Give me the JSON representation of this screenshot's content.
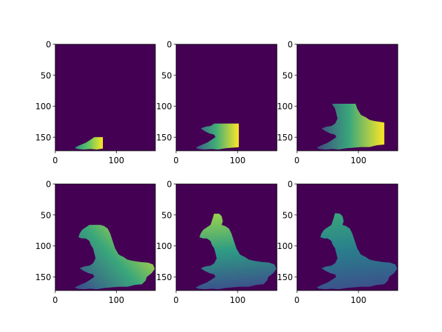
{
  "figure": {
    "background": "#ffffff",
    "colormap": "viridis",
    "colormap_stops": [
      "#440154",
      "#3b528b",
      "#21918c",
      "#5ec962",
      "#fde725"
    ]
  },
  "chart_data": [
    {
      "type": "heatmap",
      "panel": "row1-col1",
      "image_shape": [
        172,
        164
      ],
      "xlim": [
        0,
        164
      ],
      "ylim": [
        172,
        0
      ],
      "xticks": [
        0,
        100
      ],
      "xtick_labels": [
        "0",
        "100"
      ],
      "yticks": [
        0,
        50,
        100,
        150
      ],
      "ytick_labels": [
        "0",
        "50",
        "100",
        "150"
      ],
      "background_value": 0.0,
      "masked_region": "small patch near x 30-75, y 153-172 (south-west)",
      "value_range": [
        0.45,
        1.0
      ]
    },
    {
      "type": "heatmap",
      "panel": "row1-col2",
      "image_shape": [
        172,
        164
      ],
      "xlim": [
        0,
        164
      ],
      "ylim": [
        172,
        0
      ],
      "xticks": [
        0,
        100
      ],
      "xtick_labels": [
        "0",
        "100"
      ],
      "yticks": [
        0,
        50,
        100,
        150
      ],
      "ytick_labels": [
        "0",
        "50",
        "100",
        "150"
      ],
      "background_value": 0.0,
      "masked_region": "front near x 70-100, y 130-165, trailing low values to the south-west",
      "value_range": [
        0.25,
        1.0
      ]
    },
    {
      "type": "heatmap",
      "panel": "row1-col3",
      "image_shape": [
        172,
        164
      ],
      "xlim": [
        0,
        164
      ],
      "ylim": [
        172,
        0
      ],
      "xticks": [
        0,
        100
      ],
      "xtick_labels": [
        "0",
        "100"
      ],
      "yticks": [
        0,
        50,
        100,
        150
      ],
      "ytick_labels": [
        "0",
        "50",
        "100",
        "150"
      ],
      "background_value": 0.0,
      "masked_region": "front near x 40-140, y 98-165, gradient rising to the east",
      "value_range": [
        0.2,
        1.0
      ]
    },
    {
      "type": "heatmap",
      "panel": "row2-col1",
      "image_shape": [
        172,
        164
      ],
      "xlim": [
        0,
        164
      ],
      "ylim": [
        172,
        0
      ],
      "xticks": [
        0,
        100
      ],
      "xtick_labels": [
        "0",
        "100"
      ],
      "yticks": [
        0,
        50,
        100,
        150
      ],
      "ytick_labels": [
        "0",
        "50",
        "100",
        "150"
      ],
      "background_value": 0.0,
      "masked_region": "whole island x 30-164, y 68-172, high values in north and east",
      "value_range": [
        0.25,
        0.95
      ]
    },
    {
      "type": "heatmap",
      "panel": "row2-col2",
      "image_shape": [
        172,
        164
      ],
      "xlim": [
        0,
        164
      ],
      "ylim": [
        172,
        0
      ],
      "xticks": [
        0,
        100
      ],
      "xtick_labels": [
        "0",
        "100"
      ],
      "yticks": [
        0,
        50,
        100,
        150
      ],
      "ytick_labels": [
        "0",
        "50",
        "100",
        "150"
      ],
      "background_value": 0.0,
      "masked_region": "whole island x 30-164, y 50-172, highest values at north tip",
      "value_range": [
        0.25,
        0.85
      ]
    },
    {
      "type": "heatmap",
      "panel": "row2-col3",
      "image_shape": [
        172,
        164
      ],
      "xlim": [
        0,
        164
      ],
      "ylim": [
        172,
        0
      ],
      "xticks": [
        0,
        100
      ],
      "xtick_labels": [
        "0",
        "100"
      ],
      "yticks": [
        0,
        50,
        100,
        150
      ],
      "ytick_labels": [
        "0",
        "50",
        "100",
        "150"
      ],
      "background_value": 0.0,
      "masked_region": "whole island x 30-164, y 45-172, mostly uniform mid-low values",
      "value_range": [
        0.25,
        0.6
      ]
    }
  ]
}
